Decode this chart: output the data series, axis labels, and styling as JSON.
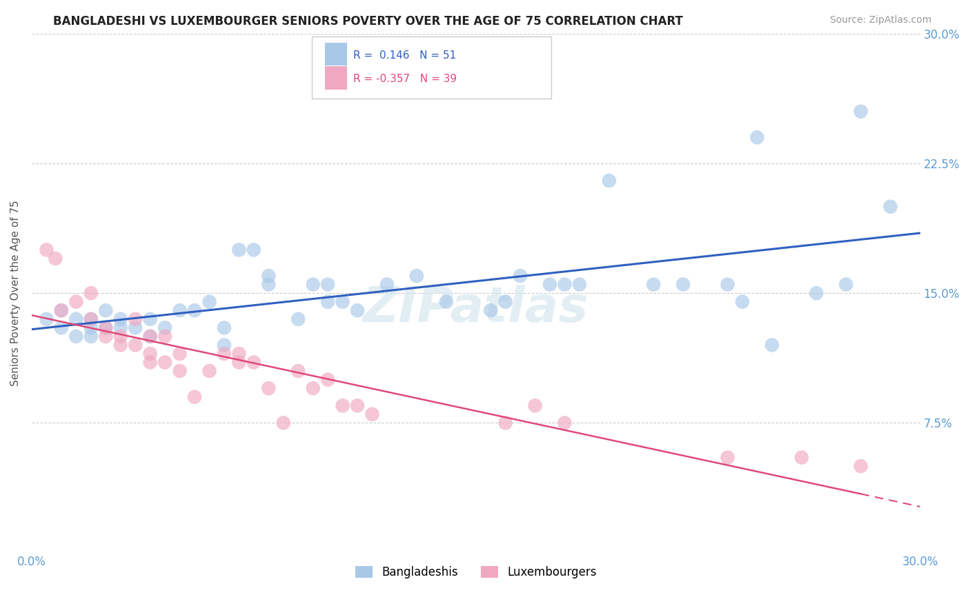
{
  "title": "BANGLADESHI VS LUXEMBOURGER SENIORS POVERTY OVER THE AGE OF 75 CORRELATION CHART",
  "source": "Source: ZipAtlas.com",
  "ylabel": "Seniors Poverty Over the Age of 75",
  "xmin": 0.0,
  "xmax": 0.3,
  "ymin": 0.0,
  "ymax": 0.3,
  "yticks": [
    0.075,
    0.15,
    0.225,
    0.3
  ],
  "ytick_labels": [
    "7.5%",
    "15.0%",
    "22.5%",
    "30.0%"
  ],
  "xticks": [
    0.0,
    0.05,
    0.1,
    0.15,
    0.2,
    0.25,
    0.3
  ],
  "xtick_labels": [
    "0.0%",
    "",
    "",
    "",
    "",
    "",
    "30.0%"
  ],
  "blue_scatter_color": "#a8c8e8",
  "pink_scatter_color": "#f0a8c0",
  "blue_line_color": "#3060c0",
  "pink_line_color": "#e04878",
  "watermark": "ZIPatlas",
  "background_color": "#ffffff",
  "grid_color": "#cccccc",
  "axis_label_color": "#5b9bd5",
  "title_color": "#222222",
  "blue_scatter": [
    [
      0.005,
      0.135
    ],
    [
      0.01,
      0.14
    ],
    [
      0.01,
      0.13
    ],
    [
      0.015,
      0.135
    ],
    [
      0.015,
      0.125
    ],
    [
      0.02,
      0.135
    ],
    [
      0.02,
      0.13
    ],
    [
      0.02,
      0.125
    ],
    [
      0.025,
      0.14
    ],
    [
      0.025,
      0.13
    ],
    [
      0.03,
      0.135
    ],
    [
      0.03,
      0.13
    ],
    [
      0.035,
      0.13
    ],
    [
      0.04,
      0.135
    ],
    [
      0.04,
      0.125
    ],
    [
      0.045,
      0.13
    ],
    [
      0.05,
      0.14
    ],
    [
      0.055,
      0.14
    ],
    [
      0.06,
      0.145
    ],
    [
      0.065,
      0.13
    ],
    [
      0.065,
      0.12
    ],
    [
      0.07,
      0.175
    ],
    [
      0.075,
      0.175
    ],
    [
      0.08,
      0.16
    ],
    [
      0.08,
      0.155
    ],
    [
      0.09,
      0.135
    ],
    [
      0.095,
      0.155
    ],
    [
      0.1,
      0.155
    ],
    [
      0.1,
      0.145
    ],
    [
      0.105,
      0.145
    ],
    [
      0.11,
      0.14
    ],
    [
      0.12,
      0.155
    ],
    [
      0.13,
      0.16
    ],
    [
      0.14,
      0.145
    ],
    [
      0.155,
      0.14
    ],
    [
      0.16,
      0.145
    ],
    [
      0.165,
      0.16
    ],
    [
      0.175,
      0.155
    ],
    [
      0.18,
      0.155
    ],
    [
      0.185,
      0.155
    ],
    [
      0.195,
      0.215
    ],
    [
      0.21,
      0.155
    ],
    [
      0.22,
      0.155
    ],
    [
      0.235,
      0.155
    ],
    [
      0.24,
      0.145
    ],
    [
      0.245,
      0.24
    ],
    [
      0.25,
      0.12
    ],
    [
      0.265,
      0.15
    ],
    [
      0.275,
      0.155
    ],
    [
      0.28,
      0.255
    ],
    [
      0.29,
      0.2
    ]
  ],
  "pink_scatter": [
    [
      0.005,
      0.175
    ],
    [
      0.008,
      0.17
    ],
    [
      0.01,
      0.14
    ],
    [
      0.015,
      0.145
    ],
    [
      0.02,
      0.15
    ],
    [
      0.02,
      0.135
    ],
    [
      0.025,
      0.13
    ],
    [
      0.025,
      0.125
    ],
    [
      0.03,
      0.125
    ],
    [
      0.03,
      0.12
    ],
    [
      0.035,
      0.135
    ],
    [
      0.035,
      0.12
    ],
    [
      0.04,
      0.125
    ],
    [
      0.04,
      0.115
    ],
    [
      0.04,
      0.11
    ],
    [
      0.045,
      0.125
    ],
    [
      0.045,
      0.11
    ],
    [
      0.05,
      0.115
    ],
    [
      0.05,
      0.105
    ],
    [
      0.055,
      0.09
    ],
    [
      0.06,
      0.105
    ],
    [
      0.065,
      0.115
    ],
    [
      0.07,
      0.115
    ],
    [
      0.07,
      0.11
    ],
    [
      0.075,
      0.11
    ],
    [
      0.08,
      0.095
    ],
    [
      0.085,
      0.075
    ],
    [
      0.09,
      0.105
    ],
    [
      0.095,
      0.095
    ],
    [
      0.1,
      0.1
    ],
    [
      0.105,
      0.085
    ],
    [
      0.11,
      0.085
    ],
    [
      0.115,
      0.08
    ],
    [
      0.16,
      0.075
    ],
    [
      0.17,
      0.085
    ],
    [
      0.18,
      0.075
    ],
    [
      0.235,
      0.055
    ],
    [
      0.26,
      0.055
    ],
    [
      0.28,
      0.05
    ]
  ]
}
